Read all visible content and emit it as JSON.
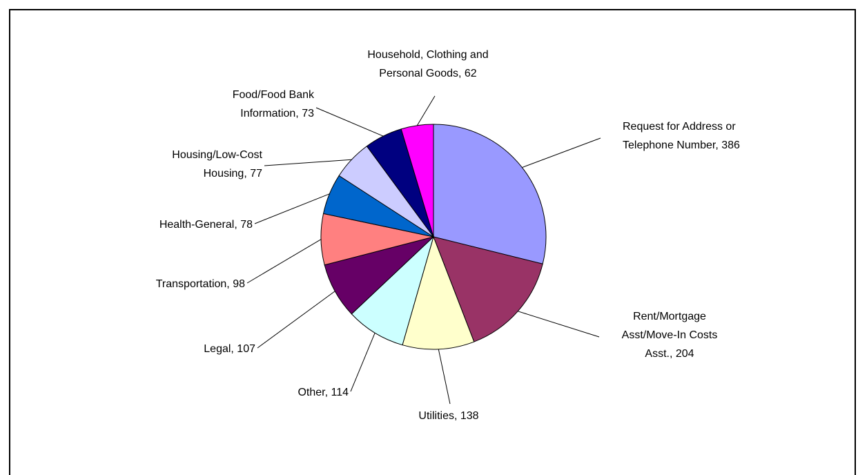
{
  "chart_data": {
    "type": "pie",
    "title": "",
    "legend": "none",
    "slices": [
      {
        "label": "Request for Address or Telephone Number",
        "value": 386,
        "color": "#9999FF",
        "text_lines": [
          "Request for Address or",
          "Telephone Number, 386"
        ]
      },
      {
        "label": "Rent/Mortgage Asst/Move-In Costs Asst.",
        "value": 204,
        "color": "#993366",
        "text_lines": [
          "Rent/Mortgage",
          "Asst/Move-In Costs",
          "Asst., 204"
        ]
      },
      {
        "label": "Utilities",
        "value": 138,
        "color": "#FFFFCC",
        "text_lines": [
          "Utilities, 138"
        ]
      },
      {
        "label": "Other",
        "value": 114,
        "color": "#CCFFFF",
        "text_lines": [
          "Other, 114"
        ]
      },
      {
        "label": "Legal",
        "value": 107,
        "color": "#660066",
        "text_lines": [
          "Legal, 107"
        ]
      },
      {
        "label": "Transportation",
        "value": 98,
        "color": "#FF8080",
        "text_lines": [
          "Transportation, 98"
        ]
      },
      {
        "label": "Health-General",
        "value": 78,
        "color": "#0066CC",
        "text_lines": [
          "Health-General, 78"
        ]
      },
      {
        "label": "Housing/Low-Cost Housing",
        "value": 77,
        "color": "#CCCCFF",
        "text_lines": [
          "Housing/Low-Cost",
          "Housing, 77"
        ]
      },
      {
        "label": "Food/Food Bank Information",
        "value": 73,
        "color": "#000080",
        "text_lines": [
          "Food/Food Bank",
          "Information, 73"
        ]
      },
      {
        "label": "Household, Clothing and Personal Goods",
        "value": 62,
        "color": "#FF00FF",
        "text_lines": [
          "Household, Clothing and",
          "Personal Goods, 62"
        ]
      }
    ]
  }
}
